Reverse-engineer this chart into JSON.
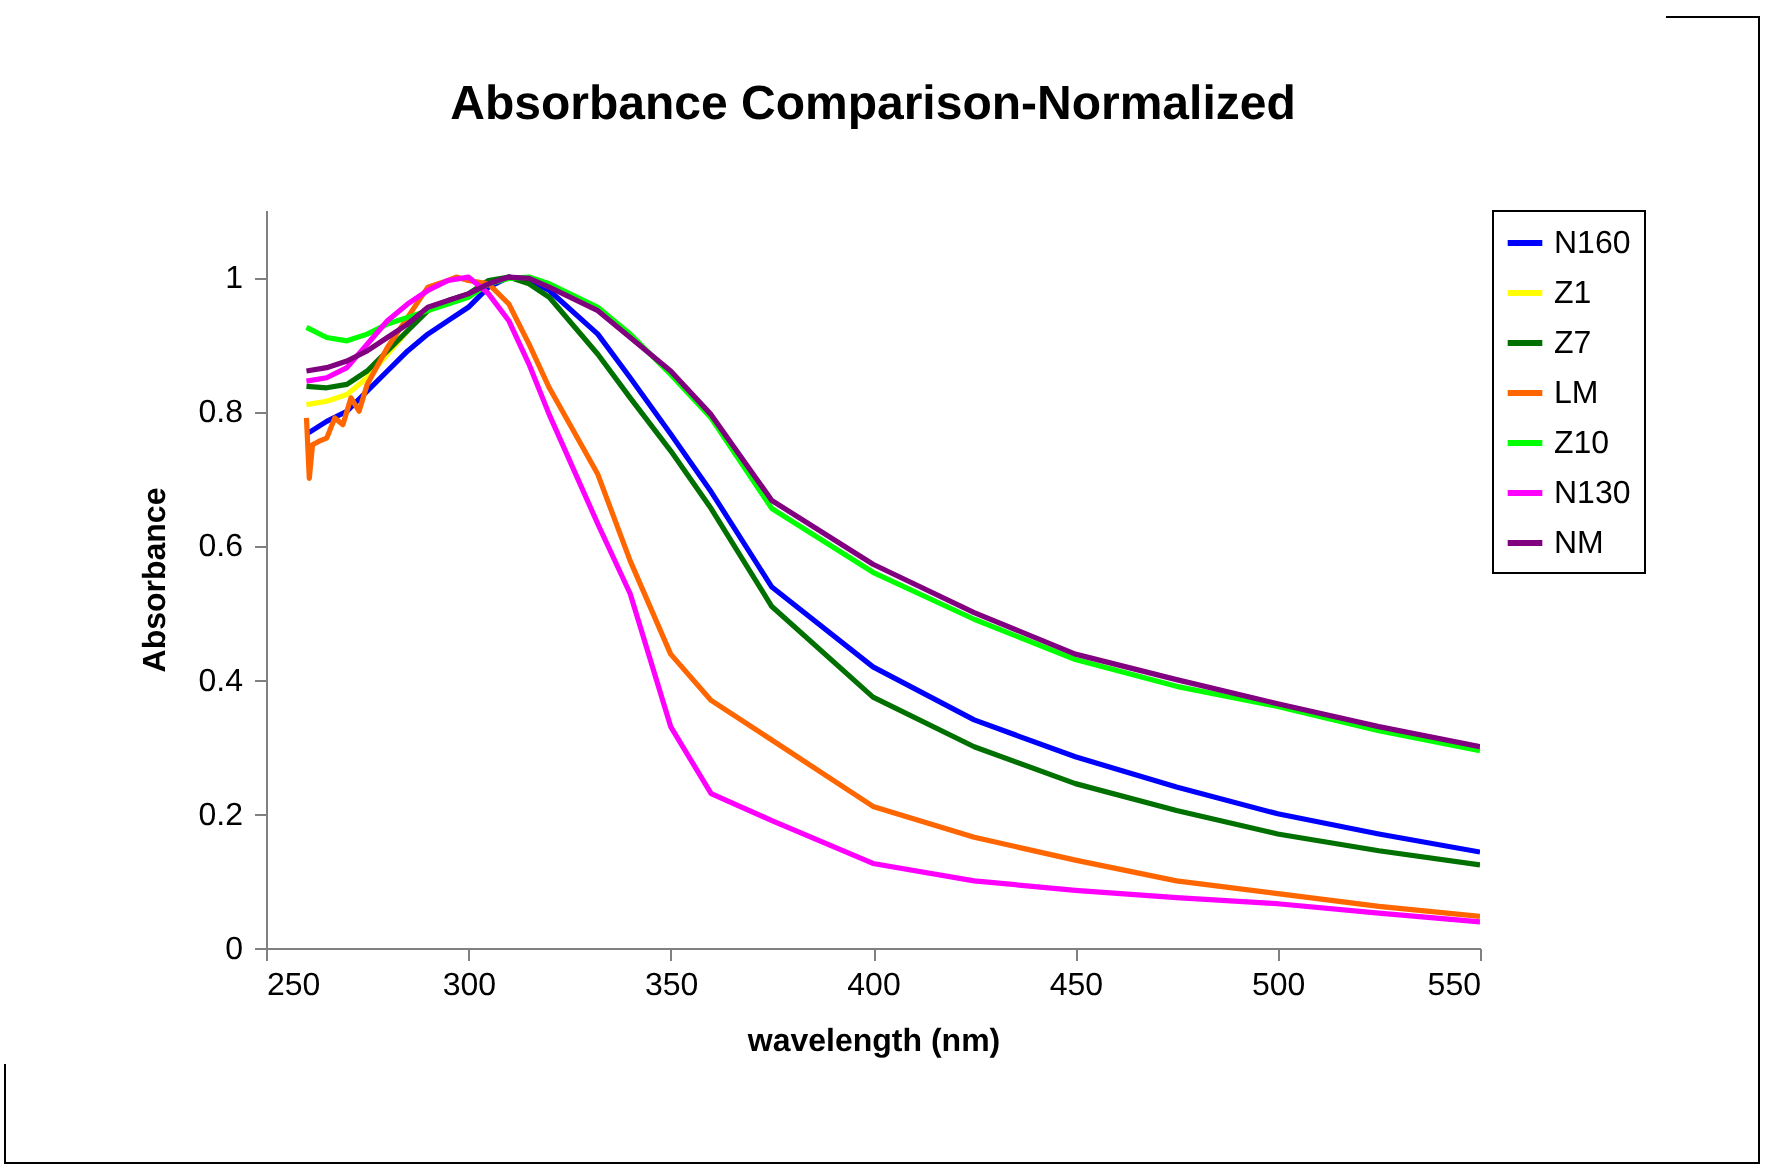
{
  "chart_data": {
    "type": "line",
    "title": "Absorbance Comparison-Normalized",
    "xlabel": "wavelength (nm)",
    "ylabel": "Absorbance",
    "x": [
      260,
      265,
      270,
      275,
      280,
      285,
      290,
      295,
      300,
      305,
      310,
      315,
      320,
      332,
      340,
      350,
      360,
      375,
      400,
      425,
      450,
      475,
      500,
      525,
      550
    ],
    "xlim": [
      250,
      550
    ],
    "xticks": [
      250,
      300,
      350,
      400,
      450,
      500,
      550
    ],
    "ylim": [
      0,
      1.1
    ],
    "yticks": [
      0,
      0.2,
      0.4,
      0.6,
      0.8,
      1
    ],
    "grid": false,
    "legend": "right",
    "marker": "none",
    "line_style": "solid",
    "series": [
      {
        "name": "N160",
        "color": "#0000ff",
        "values": [
          0.766,
          0.785,
          0.8,
          0.83,
          0.86,
          0.89,
          0.915,
          0.935,
          0.955,
          0.985,
          1.0,
          0.995,
          0.98,
          0.915,
          0.85,
          0.766,
          0.68,
          0.538,
          0.419,
          0.34,
          0.285,
          0.24,
          0.2,
          0.17,
          0.143
        ]
      },
      {
        "name": "Z1",
        "color": "#ffff00",
        "values": [
          0.81,
          0.815,
          0.825,
          0.85,
          0.885,
          0.92,
          null,
          null,
          null,
          null,
          null,
          null,
          null,
          null,
          null,
          null,
          null,
          null,
          null,
          null,
          null,
          null,
          null,
          null,
          null
        ]
      },
      {
        "name": "Z7",
        "color": "#007000",
        "values": [
          0.837,
          0.835,
          0.84,
          0.86,
          0.89,
          0.92,
          0.95,
          0.965,
          0.975,
          0.995,
          1.0,
          0.99,
          0.97,
          0.885,
          0.82,
          0.741,
          0.655,
          0.509,
          0.374,
          0.3,
          0.245,
          0.205,
          0.17,
          0.145,
          0.124
        ]
      },
      {
        "name": "LM",
        "color": "#ff6600",
        "x": [
          260,
          260.7,
          261.5,
          263,
          265,
          267,
          269,
          271,
          273,
          275,
          280,
          285,
          290,
          295,
          297,
          300,
          305,
          310,
          315,
          320,
          332,
          340,
          350,
          360,
          375,
          400,
          425,
          450,
          475,
          500,
          525,
          550
        ],
        "values": [
          0.79,
          0.7,
          0.75,
          0.755,
          0.76,
          0.79,
          0.78,
          0.82,
          0.8,
          0.84,
          0.895,
          0.94,
          0.985,
          0.995,
          1.0,
          0.995,
          0.99,
          0.96,
          0.9,
          0.835,
          0.706,
          0.577,
          0.438,
          0.369,
          0.31,
          0.211,
          0.165,
          0.131,
          0.1,
          0.081,
          0.062,
          0.047
        ]
      },
      {
        "name": "Z10",
        "color": "#00ff00",
        "values": [
          0.925,
          0.91,
          0.905,
          0.915,
          0.93,
          0.94,
          0.95,
          0.96,
          0.97,
          0.99,
          0.998,
          1.0,
          0.99,
          0.955,
          0.915,
          0.855,
          0.79,
          0.655,
          0.56,
          0.49,
          0.43,
          0.39,
          0.36,
          0.324,
          0.294
        ]
      },
      {
        "name": "N130",
        "color": "#ff00ff",
        "values": [
          0.845,
          0.85,
          0.865,
          0.9,
          0.935,
          0.96,
          0.98,
          0.995,
          1.0,
          0.975,
          0.935,
          0.87,
          0.795,
          0.632,
          0.528,
          0.33,
          0.23,
          0.19,
          0.126,
          0.1,
          0.086,
          0.075,
          0.066,
          0.052,
          0.039
        ]
      },
      {
        "name": "NM",
        "color": "#800080",
        "values": [
          0.86,
          0.865,
          0.875,
          0.89,
          0.91,
          0.93,
          0.955,
          0.965,
          0.975,
          0.99,
          1.0,
          0.998,
          0.985,
          0.95,
          0.91,
          0.86,
          0.795,
          0.667,
          0.572,
          0.5,
          0.438,
          0.4,
          0.364,
          0.33,
          0.3
        ]
      }
    ]
  }
}
